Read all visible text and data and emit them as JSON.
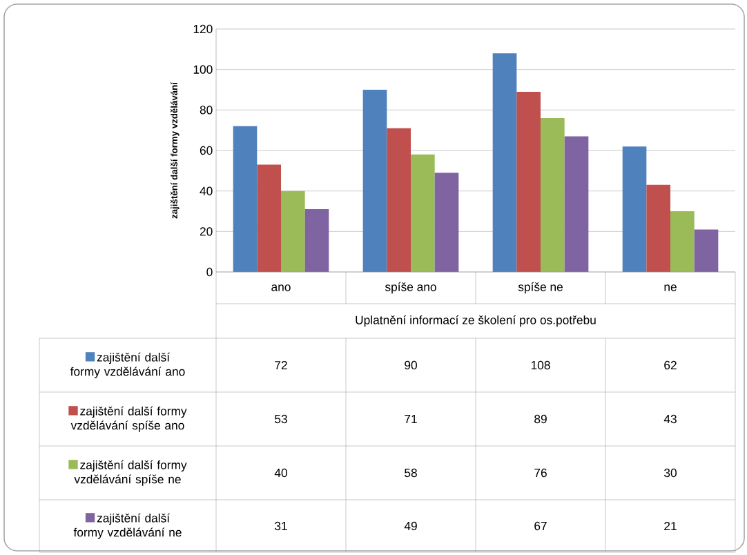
{
  "chart_data": {
    "type": "bar",
    "ylabel": "zajištění další formy vzdělávání",
    "xlabel": "Uplatnění informací ze školení pro os.potřebu",
    "categories": [
      "ano",
      "spíše ano",
      "spíše ne",
      "ne"
    ],
    "series": [
      {
        "name": "zajištění další formy vzdělávání ano",
        "color": "#4f81bd",
        "values": [
          72,
          90,
          108,
          62
        ]
      },
      {
        "name": "zajištění další formy vzdělávání spíše ano",
        "color": "#c0504d",
        "values": [
          53,
          71,
          89,
          43
        ]
      },
      {
        "name": "zajištění další formy vzdělávání spíše ne",
        "color": "#9bbb59",
        "values": [
          40,
          58,
          76,
          30
        ]
      },
      {
        "name": "zajištění další formy vzdělávání ne",
        "color": "#8064a2",
        "values": [
          31,
          49,
          67,
          21
        ]
      }
    ],
    "ylim": [
      0,
      120
    ],
    "yticks": [
      0,
      20,
      40,
      60,
      80,
      100,
      120
    ],
    "grid": "y",
    "legend": "bottom left",
    "data_labels": true
  }
}
